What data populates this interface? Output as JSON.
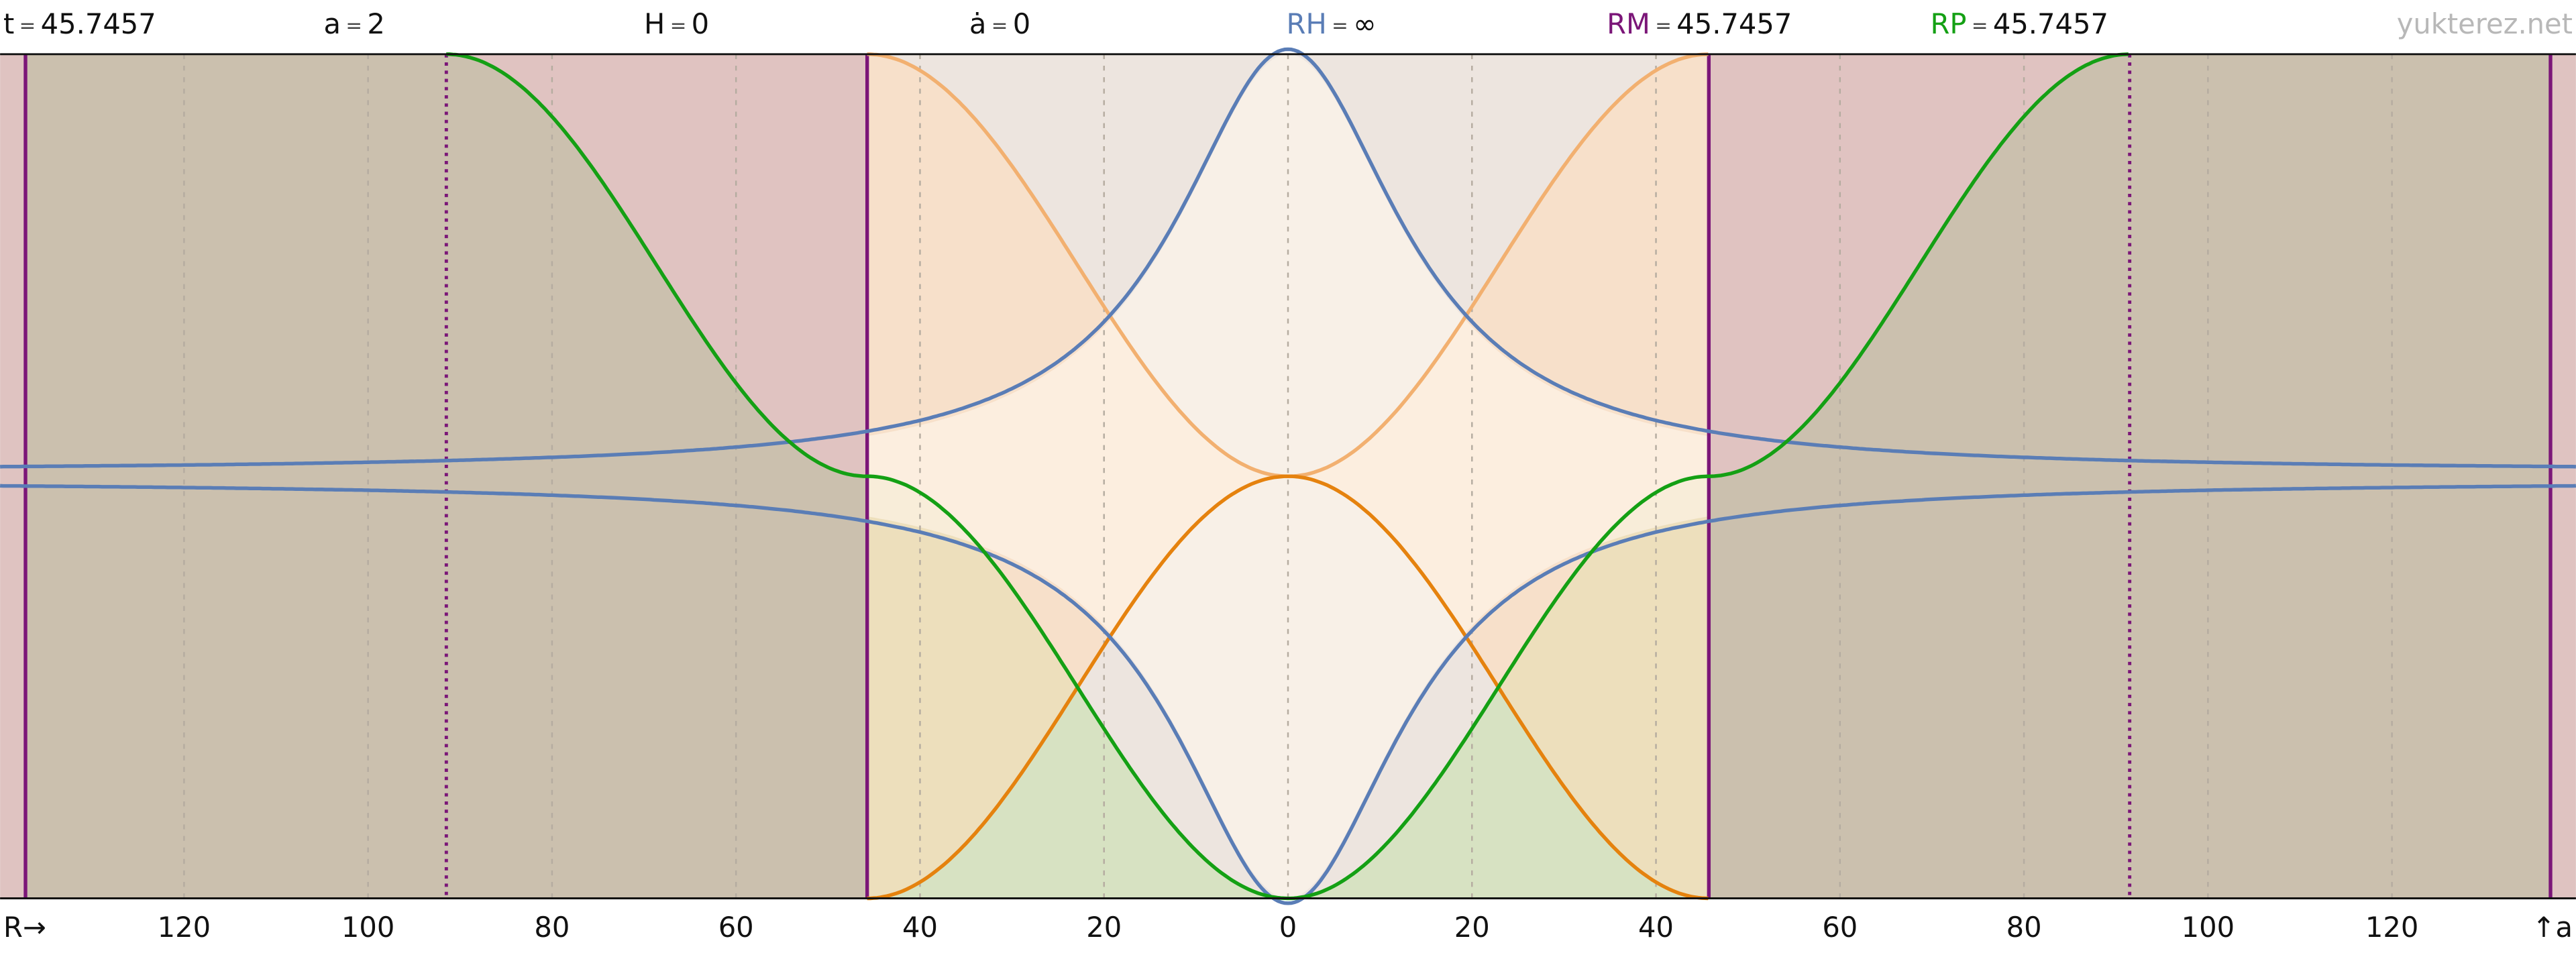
{
  "header": {
    "equals": "=",
    "items": [
      {
        "label": "t",
        "value": 45.7457
      },
      {
        "label": "a",
        "value": 2
      },
      {
        "label": "H",
        "value": 0
      },
      {
        "label": "ȧ",
        "value": 0
      },
      {
        "label": "RH",
        "value": "∞",
        "color": "#5a7db6"
      },
      {
        "label": "RM",
        "value": 45.7457,
        "color": "#7b1678"
      },
      {
        "label": "RP",
        "value": 45.7457,
        "color": "#14a014"
      }
    ],
    "site": "yukterez.net"
  },
  "x_axis": {
    "start_label": "R→",
    "end_label": "↑a",
    "xlim": [
      -140,
      140
    ],
    "ticks": [
      {
        "value": -120,
        "label": "120"
      },
      {
        "value": -100,
        "label": "100"
      },
      {
        "value": -80,
        "label": "80"
      },
      {
        "value": -60,
        "label": "60"
      },
      {
        "value": -40,
        "label": "40"
      },
      {
        "value": -20,
        "label": "20"
      },
      0,
      20,
      40,
      60,
      80,
      100,
      120
    ]
  }
}
